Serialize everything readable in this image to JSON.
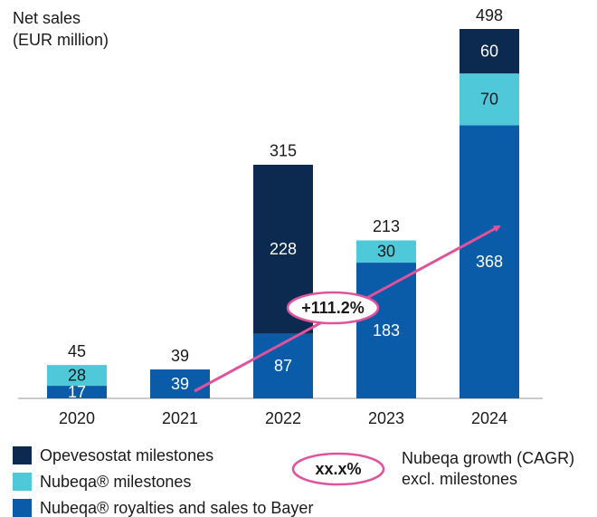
{
  "chart_data": {
    "type": "stacked_bar",
    "title": [
      "Net sales",
      "(EUR million)"
    ],
    "categories": [
      "2020",
      "2021",
      "2022",
      "2023",
      "2024"
    ],
    "series": [
      {
        "name": "Nubeqa® royalties and sales to Bayer",
        "color": "#0a5ba8",
        "label_color": "#ffffff",
        "values": [
          17,
          39,
          87,
          183,
          368
        ]
      },
      {
        "name": "Nubeqa® milestones",
        "color": "#4fc9d9",
        "label_color": "#1a1a1a",
        "values": [
          28,
          null,
          null,
          30,
          70
        ]
      },
      {
        "name": "Opevesostat milestones",
        "color": "#0c2a4f",
        "label_color": "#ffffff",
        "values": [
          null,
          null,
          228,
          null,
          60
        ]
      }
    ],
    "totals": [
      45,
      39,
      315,
      213,
      498
    ],
    "growth_annotation": {
      "label": "+111.2%",
      "color": "#e0529c"
    },
    "growth_legend": {
      "label": "xx.x%",
      "text": [
        "Nubeqa growth (CAGR)",
        "excl. milestones"
      ]
    }
  }
}
